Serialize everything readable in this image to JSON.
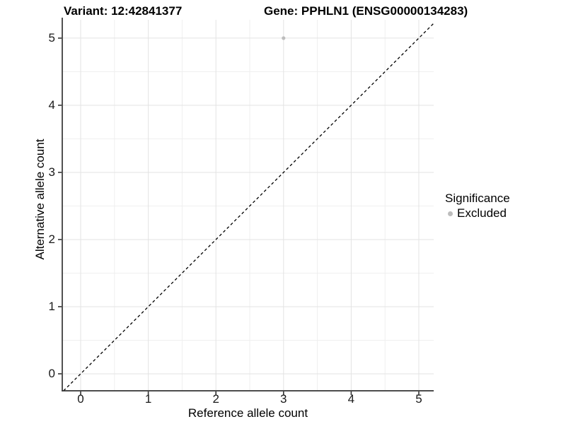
{
  "titles": {
    "variant": "Variant: 12:42841377",
    "gene": "Gene: PPHLN1 (ENSG00000134283)"
  },
  "axes": {
    "x_label": "Reference allele count",
    "y_label": "Alternative allele count"
  },
  "legend": {
    "title": "Significance",
    "position": "right",
    "items": [
      {
        "label": "Excluded",
        "color": "#bdbdbd"
      }
    ]
  },
  "chart_data": {
    "type": "scatter",
    "title": "Variant: 12:42841377 / Gene: PPHLN1 (ENSG00000134283)",
    "xlabel": "Reference allele count",
    "ylabel": "Alternative allele count",
    "x_ticks": [
      0,
      1,
      2,
      3,
      4,
      5
    ],
    "y_ticks": [
      0,
      1,
      2,
      3,
      4,
      5
    ],
    "xlim": [
      -0.272,
      5.22
    ],
    "ylim": [
      -0.253,
      5.273
    ],
    "minor_grid_step": 0.5,
    "grid": "major+minor",
    "series": [
      {
        "name": "Excluded",
        "color": "#bdbdbd",
        "points": [
          {
            "x": 3,
            "y": 5
          }
        ]
      }
    ],
    "reference_line": {
      "type": "identity",
      "slope": 1,
      "intercept": 0,
      "style": "dashed",
      "color": "#000000"
    },
    "colors": {
      "background": "#ffffff",
      "grid_major": "#e3e3e3",
      "grid_minor": "#efefef",
      "axis_line": "#333333",
      "point": "#bdbdbd"
    }
  }
}
